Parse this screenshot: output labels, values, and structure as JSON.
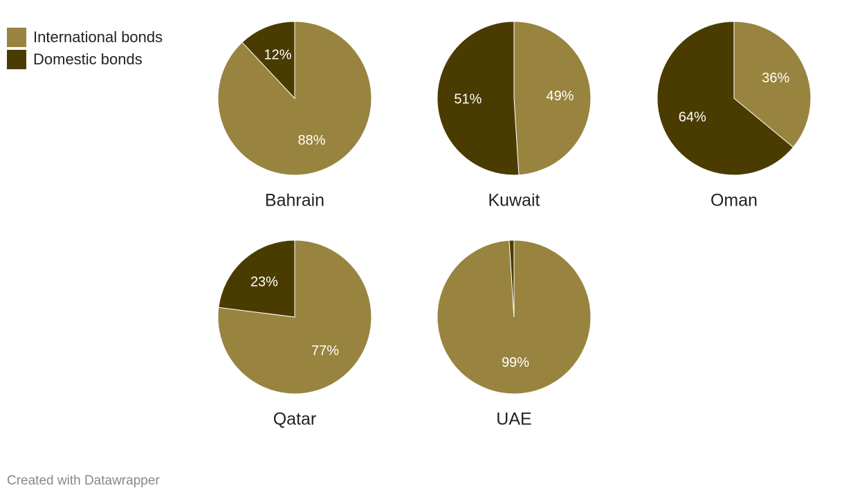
{
  "chart_data": {
    "type": "pie",
    "categories": [
      "Bahrain",
      "Kuwait",
      "Oman",
      "Qatar",
      "UAE"
    ],
    "series": [
      {
        "name": "International bonds",
        "color": "#98843f",
        "values": [
          88,
          49,
          36,
          77,
          99
        ],
        "value_labels": [
          "88%",
          "49%",
          "36%",
          "77%",
          "99%"
        ]
      },
      {
        "name": "Domestic bonds",
        "color": "#4a3c00",
        "values": [
          12,
          51,
          64,
          23,
          1
        ],
        "value_labels": [
          "12%",
          "51%",
          "64%",
          "23%",
          null
        ]
      }
    ]
  },
  "credit": "Created with Datawrapper"
}
